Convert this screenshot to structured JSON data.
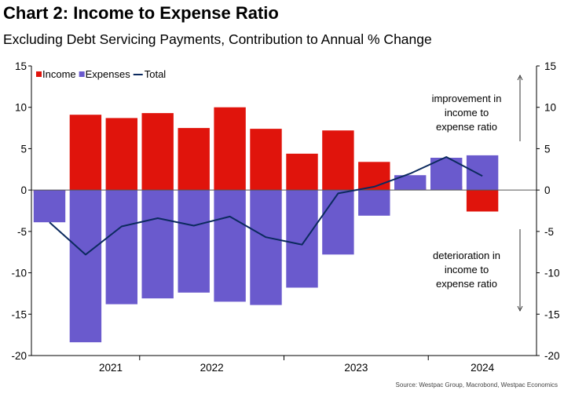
{
  "title": "Chart 2: Income to Expense Ratio",
  "subtitle": "Excluding Debt Servicing Payments, Contribution to Annual % Change",
  "source": "Source: Westpac Group, Macrobond, Westpac Economics",
  "colors": {
    "income": "#e0140c",
    "expenses": "#6a5acd",
    "total": "#0b2a5e",
    "axis": "#000000"
  },
  "chart_data": {
    "type": "bar",
    "x": [
      "2021Q1",
      "2021Q2",
      "2021Q3",
      "2021Q4",
      "2022Q1",
      "2022Q2",
      "2022Q3",
      "2022Q4",
      "2023Q1",
      "2023Q2",
      "2023Q3",
      "2023Q4",
      "2024Q1",
      "2024Q2"
    ],
    "x_tick_labels": [
      "2021",
      "2022",
      "2023",
      "2024"
    ],
    "series": [
      {
        "name": "Income",
        "type": "bar",
        "values": [
          -0.3,
          9.1,
          8.7,
          9.3,
          7.5,
          10.0,
          7.4,
          4.4,
          7.2,
          3.4,
          0.3,
          0.5,
          -2.6,
          null
        ]
      },
      {
        "name": "Expenses",
        "type": "bar",
        "values": [
          -3.9,
          -18.4,
          -13.8,
          -13.1,
          -12.4,
          -13.5,
          -13.9,
          -11.8,
          -7.8,
          -3.1,
          1.8,
          3.9,
          4.2,
          null
        ]
      },
      {
        "name": "Total",
        "type": "line",
        "values": [
          -3.9,
          -7.8,
          -4.4,
          -3.4,
          -4.3,
          -3.2,
          -5.7,
          -6.6,
          -0.4,
          0.4,
          2.0,
          4.0,
          1.7,
          null
        ]
      }
    ],
    "ylim": [
      -20,
      15
    ],
    "yticks": [
      15,
      10,
      5,
      0,
      -5,
      -10,
      -15,
      -20
    ],
    "right_axis": true,
    "grid": false,
    "legend_position": "top-left",
    "annotations": [
      {
        "text": [
          "improvement in",
          "income to",
          "expense ratio"
        ],
        "arrow": "up"
      },
      {
        "text": [
          "deterioration in",
          "income to",
          "expense ratio"
        ],
        "arrow": "down"
      }
    ]
  }
}
